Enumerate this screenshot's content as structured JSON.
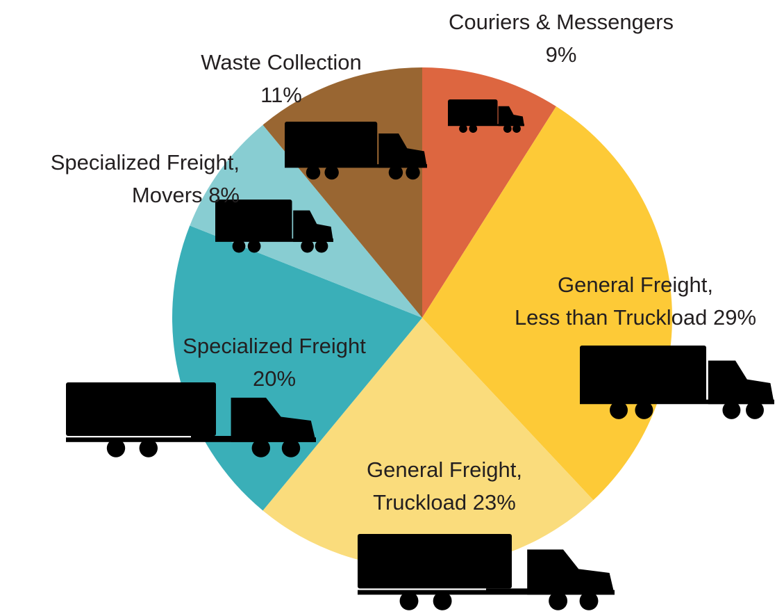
{
  "chart_data": {
    "type": "pie",
    "categories": [
      "Couriers & Messengers",
      "General Freight,\nLess than Truckload",
      "General Freight,\nTruckload",
      "Specialized Freight",
      "Specialized Freight,\nMovers",
      "Waste Collection"
    ],
    "values": [
      9,
      29,
      23,
      20,
      8,
      11
    ],
    "value_labels": [
      "9%",
      "29%",
      "23%",
      "20%",
      "8%",
      "11%"
    ],
    "colors": [
      "#dd6640",
      "#fdca37",
      "#fadc7c",
      "#3aafb8",
      "#88cdd2",
      "#996632"
    ]
  }
}
